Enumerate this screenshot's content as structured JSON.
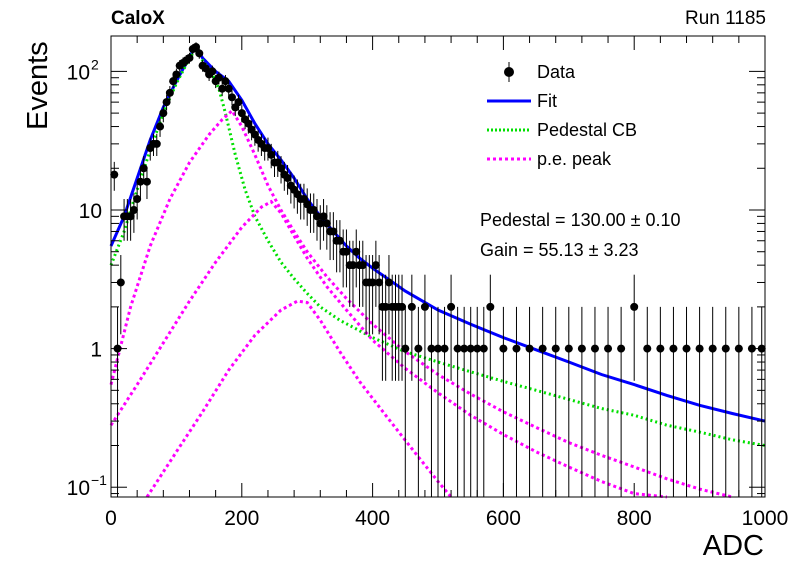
{
  "header": {
    "brand": "CaloX",
    "run_label": "Run 1185"
  },
  "fit_results": {
    "pedestal_text": "Pedestal = 130.00 ± 0.10",
    "gain_text": "Gain = 55.13 ± 3.23"
  },
  "legend": {
    "data": "Data",
    "fit": "Fit",
    "pedestal_cb": "Pedestal CB",
    "pe_peak": "p.e. peak"
  },
  "colors": {
    "data": "#000000",
    "fit": "#0000ff",
    "pedestal_cb": "#00e000",
    "pe_peak": "#ff00ff"
  },
  "chart_data": {
    "type": "scatter",
    "xlabel": "ADC",
    "ylabel": "Events",
    "xlim": [
      0,
      1000
    ],
    "ylim": [
      0.085,
      180
    ],
    "yscale": "log",
    "grid": false,
    "legend_position": "top-right",
    "x_ticks": [
      0,
      200,
      400,
      600,
      800,
      1000
    ],
    "y_ticks": [
      {
        "value": 0.1,
        "label": "10",
        "sup": "−1"
      },
      {
        "value": 1,
        "label": "1",
        "sup": ""
      },
      {
        "value": 10,
        "label": "10",
        "sup": ""
      },
      {
        "value": 100,
        "label": "10",
        "sup": "2"
      }
    ],
    "series": [
      {
        "name": "Data",
        "style": "points-with-errorbars",
        "points": [
          [
            5,
            18
          ],
          [
            10,
            1
          ],
          [
            15,
            3
          ],
          [
            20,
            9
          ],
          [
            25,
            9
          ],
          [
            30,
            9
          ],
          [
            35,
            10
          ],
          [
            40,
            12
          ],
          [
            45,
            16
          ],
          [
            50,
            20
          ],
          [
            55,
            16
          ],
          [
            60,
            28
          ],
          [
            65,
            30
          ],
          [
            70,
            30
          ],
          [
            75,
            40
          ],
          [
            80,
            50
          ],
          [
            85,
            60
          ],
          [
            90,
            70
          ],
          [
            95,
            85
          ],
          [
            100,
            95
          ],
          [
            105,
            110
          ],
          [
            110,
            115
          ],
          [
            115,
            120
          ],
          [
            120,
            125
          ],
          [
            125,
            145
          ],
          [
            130,
            150
          ],
          [
            135,
            135
          ],
          [
            140,
            110
          ],
          [
            145,
            105
          ],
          [
            150,
            95
          ],
          [
            155,
            100
          ],
          [
            160,
            85
          ],
          [
            165,
            90
          ],
          [
            170,
            75
          ],
          [
            175,
            85
          ],
          [
            180,
            75
          ],
          [
            185,
            65
          ],
          [
            190,
            55
          ],
          [
            195,
            60
          ],
          [
            200,
            50
          ],
          [
            205,
            45
          ],
          [
            210,
            42
          ],
          [
            215,
            38
          ],
          [
            220,
            35
          ],
          [
            225,
            32
          ],
          [
            230,
            30
          ],
          [
            235,
            28
          ],
          [
            240,
            28
          ],
          [
            245,
            25
          ],
          [
            250,
            22
          ],
          [
            255,
            22
          ],
          [
            260,
            20
          ],
          [
            265,
            18
          ],
          [
            270,
            17
          ],
          [
            275,
            15
          ],
          [
            280,
            14
          ],
          [
            285,
            13
          ],
          [
            290,
            12
          ],
          [
            295,
            12
          ],
          [
            300,
            11
          ],
          [
            305,
            10
          ],
          [
            310,
            10
          ],
          [
            315,
            9
          ],
          [
            320,
            8
          ],
          [
            325,
            9
          ],
          [
            330,
            8
          ],
          [
            335,
            7
          ],
          [
            340,
            7
          ],
          [
            345,
            6
          ],
          [
            350,
            6
          ],
          [
            355,
            5
          ],
          [
            360,
            5
          ],
          [
            365,
            4
          ],
          [
            370,
            4
          ],
          [
            375,
            5
          ],
          [
            380,
            4
          ],
          [
            385,
            4
          ],
          [
            390,
            3
          ],
          [
            395,
            3
          ],
          [
            400,
            3
          ],
          [
            405,
            4
          ],
          [
            410,
            3
          ],
          [
            415,
            2
          ],
          [
            420,
            2
          ],
          [
            425,
            3
          ],
          [
            430,
            2
          ],
          [
            435,
            2
          ],
          [
            440,
            2
          ],
          [
            445,
            2
          ],
          [
            450,
            1
          ],
          [
            460,
            2
          ],
          [
            470,
            1
          ],
          [
            480,
            2
          ],
          [
            490,
            1
          ],
          [
            500,
            1
          ],
          [
            510,
            1
          ],
          [
            520,
            2
          ],
          [
            530,
            1
          ],
          [
            540,
            1
          ],
          [
            550,
            1
          ],
          [
            560,
            1
          ],
          [
            570,
            1
          ],
          [
            580,
            2
          ],
          [
            600,
            1
          ],
          [
            620,
            1
          ],
          [
            640,
            1
          ],
          [
            660,
            1
          ],
          [
            680,
            1
          ],
          [
            700,
            1
          ],
          [
            720,
            1
          ],
          [
            740,
            1
          ],
          [
            760,
            1
          ],
          [
            780,
            1
          ],
          [
            800,
            2
          ],
          [
            820,
            1
          ],
          [
            840,
            1
          ],
          [
            860,
            1
          ],
          [
            880,
            1
          ],
          [
            900,
            1
          ],
          [
            920,
            1
          ],
          [
            940,
            1
          ],
          [
            960,
            1
          ],
          [
            980,
            1
          ],
          [
            995,
            1
          ]
        ]
      },
      {
        "name": "Fit",
        "style": "solid",
        "points": [
          [
            0,
            5.5
          ],
          [
            20,
            9
          ],
          [
            40,
            17
          ],
          [
            60,
            32
          ],
          [
            80,
            55
          ],
          [
            100,
            85
          ],
          [
            115,
            115
          ],
          [
            125,
            140
          ],
          [
            130,
            148
          ],
          [
            140,
            125
          ],
          [
            160,
            100
          ],
          [
            180,
            85
          ],
          [
            200,
            62
          ],
          [
            220,
            42
          ],
          [
            240,
            30
          ],
          [
            260,
            23
          ],
          [
            280,
            17
          ],
          [
            300,
            12
          ],
          [
            320,
            9
          ],
          [
            340,
            7
          ],
          [
            360,
            5.5
          ],
          [
            380,
            4.5
          ],
          [
            400,
            3.8
          ],
          [
            450,
            2.6
          ],
          [
            500,
            1.9
          ],
          [
            550,
            1.5
          ],
          [
            600,
            1.2
          ],
          [
            650,
            0.98
          ],
          [
            700,
            0.8
          ],
          [
            750,
            0.65
          ],
          [
            800,
            0.55
          ],
          [
            850,
            0.46
          ],
          [
            900,
            0.39
          ],
          [
            950,
            0.34
          ],
          [
            1000,
            0.3
          ]
        ]
      },
      {
        "name": "Pedestal CB",
        "style": "dotted",
        "points": [
          [
            0,
            4
          ],
          [
            20,
            7
          ],
          [
            40,
            14
          ],
          [
            60,
            27
          ],
          [
            80,
            50
          ],
          [
            100,
            82
          ],
          [
            115,
            112
          ],
          [
            125,
            135
          ],
          [
            130,
            145
          ],
          [
            140,
            120
          ],
          [
            155,
            95
          ],
          [
            165,
            75
          ],
          [
            175,
            50
          ],
          [
            190,
            25
          ],
          [
            205,
            14
          ],
          [
            220,
            9
          ],
          [
            240,
            6
          ],
          [
            260,
            4.2
          ],
          [
            280,
            3.2
          ],
          [
            300,
            2.5
          ],
          [
            320,
            2
          ],
          [
            350,
            1.6
          ],
          [
            400,
            1.2
          ],
          [
            450,
            0.95
          ],
          [
            500,
            0.8
          ],
          [
            550,
            0.68
          ],
          [
            600,
            0.58
          ],
          [
            650,
            0.5
          ],
          [
            700,
            0.43
          ],
          [
            750,
            0.37
          ],
          [
            800,
            0.33
          ],
          [
            850,
            0.28
          ],
          [
            900,
            0.25
          ],
          [
            950,
            0.22
          ],
          [
            1000,
            0.2
          ]
        ]
      },
      {
        "name": "p.e. peak",
        "style": "dotted",
        "points": [
          [
            0,
            0.55
          ],
          [
            30,
            2
          ],
          [
            60,
            5.5
          ],
          [
            90,
            12
          ],
          [
            120,
            22
          ],
          [
            150,
            35
          ],
          [
            170,
            45
          ],
          [
            185,
            52
          ],
          [
            200,
            40
          ],
          [
            220,
            25
          ],
          [
            240,
            15
          ],
          [
            260,
            10
          ],
          [
            280,
            7
          ],
          [
            300,
            5
          ],
          [
            330,
            3.3
          ],
          [
            360,
            2.3
          ],
          [
            400,
            1.5
          ],
          [
            450,
            0.95
          ],
          [
            500,
            0.65
          ],
          [
            550,
            0.47
          ],
          [
            600,
            0.35
          ],
          [
            650,
            0.27
          ],
          [
            700,
            0.21
          ],
          [
            750,
            0.17
          ],
          [
            800,
            0.14
          ],
          [
            850,
            0.115
          ],
          [
            900,
            0.097
          ],
          [
            950,
            0.085
          ]
        ]
      },
      {
        "name": "p.e. peak",
        "style": "dotted",
        "points": [
          [
            0,
            0.28
          ],
          [
            40,
            0.55
          ],
          [
            80,
            1.1
          ],
          [
            120,
            2.2
          ],
          [
            160,
            4.2
          ],
          [
            200,
            7.5
          ],
          [
            230,
            10.5
          ],
          [
            245,
            11.5
          ],
          [
            260,
            9.5
          ],
          [
            280,
            6.5
          ],
          [
            300,
            4.5
          ],
          [
            330,
            2.8
          ],
          [
            360,
            1.9
          ],
          [
            400,
            1.15
          ],
          [
            450,
            0.72
          ],
          [
            500,
            0.48
          ],
          [
            550,
            0.33
          ],
          [
            600,
            0.24
          ],
          [
            650,
            0.18
          ],
          [
            700,
            0.14
          ],
          [
            750,
            0.11
          ],
          [
            800,
            0.09
          ],
          [
            850,
            0.085
          ]
        ]
      },
      {
        "name": "p.e. peak",
        "style": "dotted",
        "points": [
          [
            55,
            0.085
          ],
          [
            100,
            0.18
          ],
          [
            140,
            0.35
          ],
          [
            180,
            0.7
          ],
          [
            220,
            1.25
          ],
          [
            260,
            1.9
          ],
          [
            285,
            2.2
          ],
          [
            300,
            2.15
          ],
          [
            320,
            1.6
          ],
          [
            350,
            0.95
          ],
          [
            380,
            0.58
          ],
          [
            420,
            0.33
          ],
          [
            460,
            0.19
          ],
          [
            500,
            0.11
          ],
          [
            520,
            0.085
          ]
        ]
      }
    ]
  }
}
